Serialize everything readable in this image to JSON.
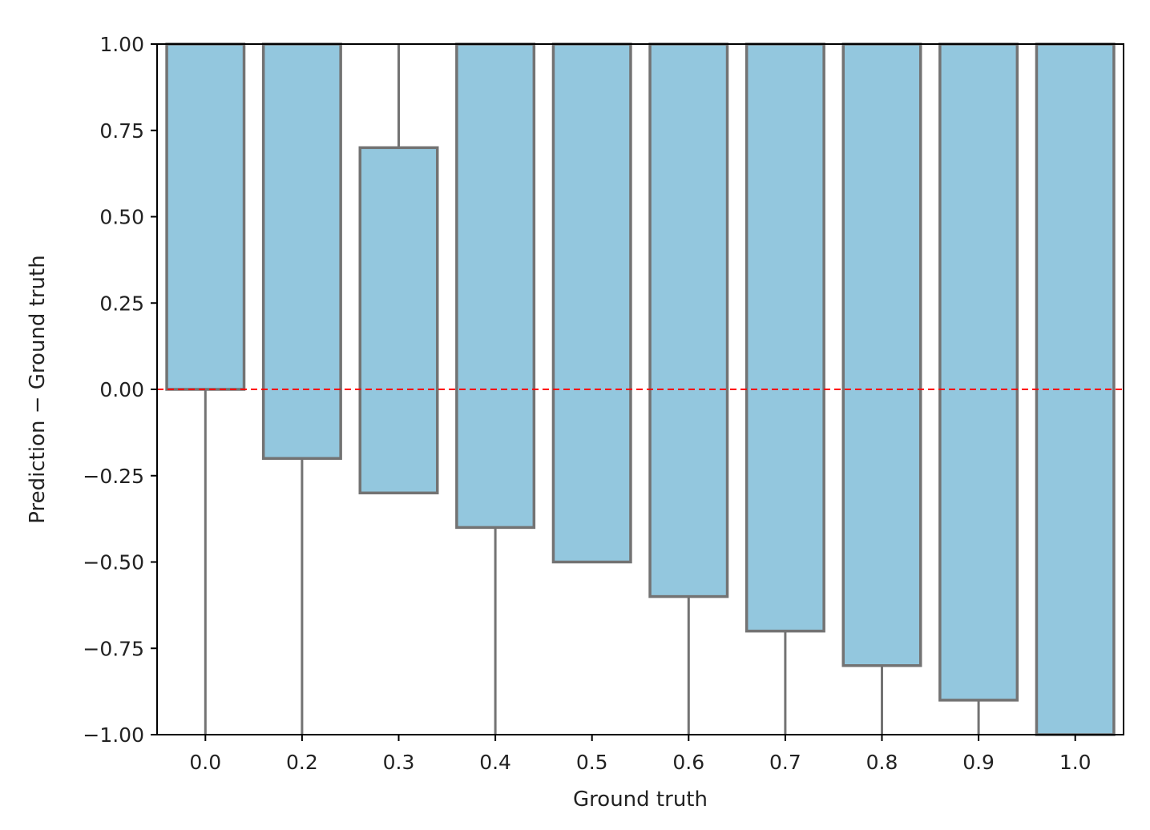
{
  "chart_data": {
    "type": "bar",
    "subtype": "boxplot",
    "xlabel": "Ground truth",
    "ylabel": "Prediction − Ground truth",
    "ylim": [
      -1.0,
      1.0
    ],
    "yticks": [
      "−1.00",
      "−0.75",
      "−0.50",
      "−0.25",
      "0.00",
      "0.25",
      "0.50",
      "0.75",
      "1.00"
    ],
    "ytick_values": [
      -1.0,
      -0.75,
      -0.5,
      -0.25,
      0.0,
      0.25,
      0.5,
      0.75,
      1.0
    ],
    "categories": [
      "0.0",
      "0.2",
      "0.3",
      "0.4",
      "0.5",
      "0.6",
      "0.7",
      "0.8",
      "0.9",
      "1.0"
    ],
    "boxes": [
      {
        "category": "0.0",
        "whisker_low": -1.0,
        "q1": 0.0,
        "q3": 1.0,
        "whisker_high": 1.0
      },
      {
        "category": "0.2",
        "whisker_low": -1.0,
        "q1": -0.2,
        "q3": 1.0,
        "whisker_high": 1.0
      },
      {
        "category": "0.3",
        "whisker_low": -0.3,
        "q1": -0.3,
        "q3": 0.7,
        "whisker_high": 1.0
      },
      {
        "category": "0.4",
        "whisker_low": -1.0,
        "q1": -0.4,
        "q3": 1.0,
        "whisker_high": 1.0
      },
      {
        "category": "0.5",
        "whisker_low": -0.5,
        "q1": -0.5,
        "q3": 1.0,
        "whisker_high": 1.0
      },
      {
        "category": "0.6",
        "whisker_low": -1.0,
        "q1": -0.6,
        "q3": 1.0,
        "whisker_high": 1.0
      },
      {
        "category": "0.7",
        "whisker_low": -1.0,
        "q1": -0.7,
        "q3": 1.0,
        "whisker_high": 1.0
      },
      {
        "category": "0.8",
        "whisker_low": -1.0,
        "q1": -0.8,
        "q3": 1.0,
        "whisker_high": 1.0
      },
      {
        "category": "0.9",
        "whisker_low": -1.0,
        "q1": -0.9,
        "q3": 1.0,
        "whisker_high": 1.0
      },
      {
        "category": "1.0",
        "whisker_low": -1.0,
        "q1": -1.0,
        "q3": 1.0,
        "whisker_high": 1.0
      }
    ],
    "reference_line": {
      "y": 0.0,
      "style": "dashed",
      "color": "#ff0000"
    },
    "colors": {
      "box_fill": "#93c7de",
      "box_edge": "#737373",
      "axis": "#000000"
    },
    "grid": false,
    "legend": "none"
  }
}
